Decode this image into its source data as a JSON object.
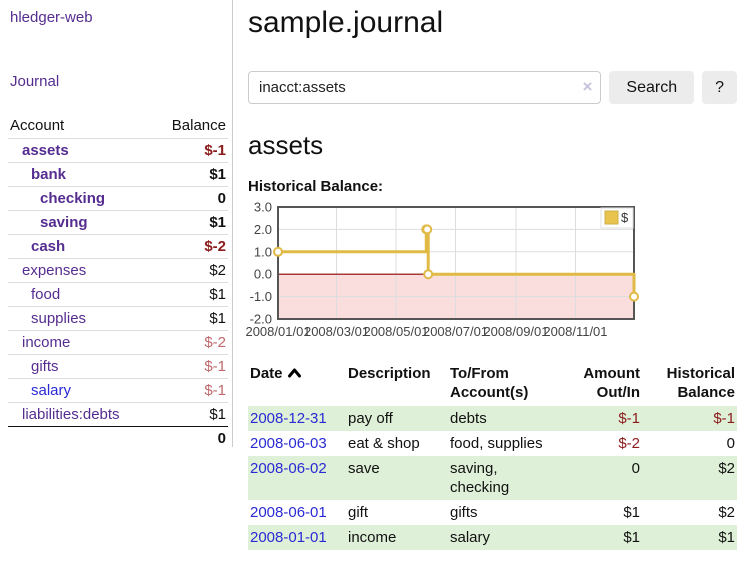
{
  "app": {
    "brand": "hledger-web"
  },
  "sidebar": {
    "journal_link": "Journal",
    "accounts": {
      "header": {
        "account": "Account",
        "balance": "Balance"
      },
      "rows": [
        {
          "name": "assets",
          "balance": "$-1"
        },
        {
          "name": "bank",
          "balance": "$1"
        },
        {
          "name": "checking",
          "balance": "0"
        },
        {
          "name": "saving",
          "balance": "$1"
        },
        {
          "name": "cash",
          "balance": "$-2"
        },
        {
          "name": "expenses",
          "balance": "$2"
        },
        {
          "name": "food",
          "balance": "$1"
        },
        {
          "name": "supplies",
          "balance": "$1"
        },
        {
          "name": "income",
          "balance": "$-2"
        },
        {
          "name": "gifts",
          "balance": "$-1"
        },
        {
          "name": "salary",
          "balance": "$-1"
        },
        {
          "name": "liabilities:debts",
          "balance": "$1"
        }
      ],
      "total": "0"
    }
  },
  "main": {
    "title": "sample.journal",
    "search": {
      "value": "inacct:assets",
      "clear": "×",
      "button": "Search",
      "help": "?"
    },
    "account_heading": "assets",
    "chart_heading": "Historical Balance:"
  },
  "chart_data": {
    "type": "line",
    "title": "Historical Balance:",
    "series": [
      {
        "name": "$",
        "color": "#e0ba45",
        "step": true,
        "points": [
          [
            "2008-01-01",
            1
          ],
          [
            "2008-06-01",
            2
          ],
          [
            "2008-06-02",
            2
          ],
          [
            "2008-06-03",
            0
          ],
          [
            "2008-12-31",
            -1
          ]
        ]
      }
    ],
    "x_range": [
      "2008-01-01",
      "2008-12-31"
    ],
    "ylim": [
      -2,
      3
    ],
    "y_ticks": [
      "3.0",
      "2.0",
      "1.0",
      "0.0",
      "-1.0",
      "-2.0"
    ],
    "x_ticks": [
      "2008/01/01",
      "2008/03/01",
      "2008/05/01",
      "2008/07/01",
      "2008/09/01",
      "2008/11/01"
    ],
    "grid": true,
    "zero_line_color": "#8b0000",
    "negative_fill": "#fadede",
    "legend": {
      "label": "$",
      "swatch_color": "#e8c34e",
      "position": "top-right"
    }
  },
  "register": {
    "headers": {
      "date": "Date",
      "description": "Description",
      "tofrom": "To/From Account(s)",
      "amount": "Amount Out/In",
      "balance": "Historical Balance"
    },
    "rows": [
      {
        "date": "2008-12-31",
        "description": "pay off",
        "accounts": "debts",
        "amount": "$-1",
        "balance": "$-1"
      },
      {
        "date": "2008-06-03",
        "description": "eat & shop",
        "accounts": "food, supplies",
        "amount": "$-2",
        "balance": "0"
      },
      {
        "date": "2008-06-02",
        "description": "save",
        "accounts": "saving, checking",
        "amount": "0",
        "balance": "$2"
      },
      {
        "date": "2008-06-01",
        "description": "gift",
        "accounts": "gifts",
        "amount": "$1",
        "balance": "$2"
      },
      {
        "date": "2008-01-01",
        "description": "income",
        "accounts": "salary",
        "amount": "$1",
        "balance": "$1"
      }
    ]
  }
}
